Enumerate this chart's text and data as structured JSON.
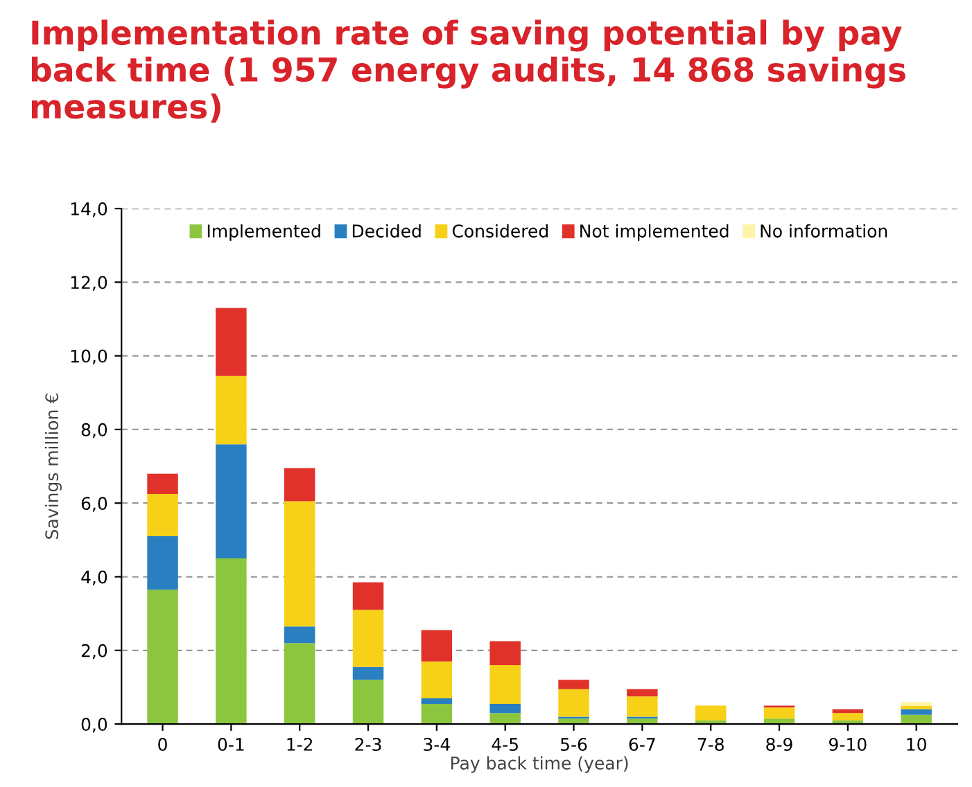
{
  "chart_data": {
    "type": "bar",
    "stacked": true,
    "title": "Implementation rate of saving potential by pay back time (1 957 energy audits, 14 868 savings measures)",
    "xlabel": "Pay back time (year)",
    "ylabel": "Savings million €",
    "categories": [
      "0",
      "0-1",
      "1-2",
      "2-3",
      "3-4",
      "4-5",
      "5-6",
      "6-7",
      "7-8",
      "8-9",
      "9-10",
      "10"
    ],
    "series": [
      {
        "name": "Implemented",
        "color": "#8cc63f",
        "values": [
          3.65,
          4.5,
          2.2,
          1.2,
          0.55,
          0.3,
          0.15,
          0.15,
          0.1,
          0.15,
          0.1,
          0.25
        ]
      },
      {
        "name": "Decided",
        "color": "#2a7fc1",
        "values": [
          1.45,
          3.1,
          0.45,
          0.35,
          0.15,
          0.25,
          0.05,
          0.05,
          0,
          0,
          0,
          0.15
        ]
      },
      {
        "name": "Considered",
        "color": "#f7d117",
        "values": [
          1.15,
          1.85,
          3.4,
          1.55,
          1.0,
          1.05,
          0.75,
          0.55,
          0.4,
          0.3,
          0.2,
          0.1
        ]
      },
      {
        "name": "Not implemented",
        "color": "#e0322a",
        "values": [
          0.55,
          1.85,
          0.9,
          0.75,
          0.85,
          0.65,
          0.25,
          0.2,
          0,
          0.05,
          0.1,
          0
        ]
      },
      {
        "name": "No information",
        "color": "#fff3a8",
        "values": [
          0,
          0,
          0,
          0,
          0,
          0,
          0,
          0,
          0,
          0,
          0,
          0.1
        ]
      }
    ],
    "ylim": [
      0,
      14
    ],
    "yticks": [
      {
        "value": 0,
        "label": "0,0"
      },
      {
        "value": 2,
        "label": "2,0"
      },
      {
        "value": 4,
        "label": "4,0"
      },
      {
        "value": 6,
        "label": "6,0"
      },
      {
        "value": 8,
        "label": "8,0"
      },
      {
        "value": 10,
        "label": "10,0"
      },
      {
        "value": 12,
        "label": "12,0"
      },
      {
        "value": 14,
        "label": "14,0"
      }
    ],
    "grid": "y",
    "legend": "top"
  }
}
